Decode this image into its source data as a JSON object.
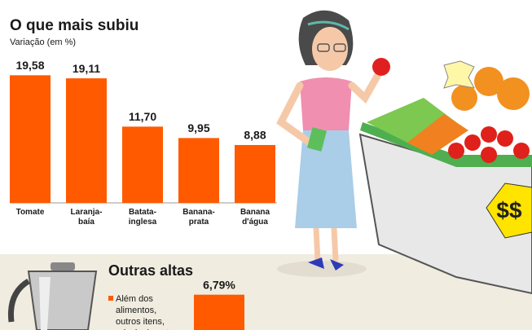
{
  "chart_data": [
    {
      "type": "bar",
      "title": "O que mais subiu",
      "subtitle": "Variação (em %)",
      "categories": [
        "Tomate",
        "Laranja-baía",
        "Batata-inglesa",
        "Banana-prata",
        "Banana d'água"
      ],
      "values": [
        19.58,
        19.11,
        11.7,
        9.95,
        8.88
      ],
      "value_labels": [
        "19,58",
        "19,11",
        "11,70",
        "9,95",
        "8,88"
      ],
      "color": "#ff5a00"
    },
    {
      "type": "bar",
      "title": "Outras altas",
      "note_lines": [
        "Além dos",
        "alimentos,",
        "outros itens,",
        "principalmente"
      ],
      "categories": [
        null
      ],
      "values": [
        6.79
      ],
      "value_labels": [
        "6,79%"
      ],
      "color": "#ff5a00"
    }
  ]
}
